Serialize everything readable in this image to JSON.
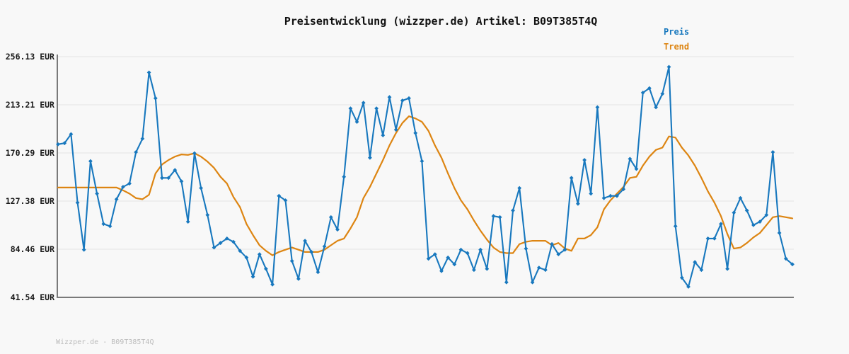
{
  "header": {
    "title": "Preisentwicklung (wizzper.de) Artikel: B09T385T4Q"
  },
  "legend": {
    "items": [
      {
        "label": "Preis",
        "color": "#1878be"
      },
      {
        "label": "Trend",
        "color": "#dd8512"
      }
    ]
  },
  "footer": {
    "text": "Wizzper.de - B09T385T4Q"
  },
  "colors": {
    "background": "#f8f8f8",
    "grid": "#e4e4e4",
    "spine": "#7a7a7a",
    "tick_label": "#1a1a1a",
    "title": "#111111",
    "footer": "#bcbcbc",
    "price": "#1878be",
    "trend": "#dd8512"
  },
  "chart_data": {
    "type": "line",
    "title": "Preisentwicklung (wizzper.de) Artikel: B09T385T4Q",
    "xlabel": "",
    "ylabel": "",
    "x_tick_labels": [],
    "grid": "horizontal",
    "legend_position": "top-right",
    "currency": "EUR",
    "ylim": [
      41.54,
      256.13
    ],
    "y_ticks": [
      {
        "value": 256.13,
        "label": "256.13 EUR"
      },
      {
        "value": 213.21,
        "label": "213.21 EUR"
      },
      {
        "value": 170.29,
        "label": "170.29 EUR"
      },
      {
        "value": 127.38,
        "label": "127.38 EUR"
      },
      {
        "value": 84.46,
        "label": "84.46 EUR"
      },
      {
        "value": 41.54,
        "label": "41.54 EUR"
      }
    ],
    "points": 114,
    "series": [
      {
        "name": "Preis",
        "color": "#1878be",
        "marker": "diamond",
        "values": [
          178,
          179,
          187,
          126,
          84,
          163,
          134,
          107,
          105,
          129,
          140,
          143,
          171,
          183,
          242,
          219,
          148,
          148,
          155,
          145,
          109,
          170,
          139,
          115,
          86,
          90,
          94,
          91,
          83,
          77,
          60,
          80,
          67,
          53,
          132,
          128,
          74,
          58,
          92,
          82,
          64,
          87,
          113,
          102,
          149,
          210,
          198,
          215,
          166,
          210,
          186,
          220,
          191,
          217,
          219,
          188,
          163,
          76,
          80,
          65,
          77,
          71,
          84,
          81,
          66,
          84,
          67,
          114,
          113,
          55,
          119,
          139,
          85,
          55,
          68,
          66,
          89,
          80,
          84,
          148,
          125,
          164,
          134,
          211,
          130,
          132,
          132,
          138,
          165,
          156,
          224,
          228,
          211,
          223,
          247,
          105,
          59,
          51,
          73,
          66,
          94,
          94,
          107,
          67,
          117,
          130,
          119,
          106,
          109,
          115,
          171,
          99,
          76,
          71
        ]
      },
      {
        "name": "Trend",
        "color": "#dd8512",
        "marker": "none",
        "values": [
          139.4,
          139.4,
          139.4,
          139.4,
          139.4,
          139.4,
          139.4,
          139.4,
          139.4,
          139.4,
          137,
          134,
          130,
          129,
          133,
          152,
          160,
          164,
          167,
          169,
          168.5,
          170,
          167,
          162.5,
          157,
          149,
          143,
          131,
          122,
          107,
          97,
          88,
          83,
          79,
          82,
          84,
          86,
          84,
          82,
          82,
          82,
          84,
          88,
          92,
          94,
          103,
          113,
          130,
          140,
          152,
          164,
          177,
          188,
          197,
          203,
          201,
          198,
          190,
          177,
          166,
          152,
          139,
          128,
          120,
          110,
          101,
          93,
          86,
          82,
          81,
          81,
          89,
          91,
          92,
          92,
          92,
          88,
          90,
          85,
          83,
          94,
          94,
          97,
          104,
          120,
          128,
          134,
          140,
          148,
          149,
          159,
          167,
          173,
          175,
          185,
          184,
          175,
          168,
          159,
          148,
          136,
          126,
          114,
          98,
          85,
          86,
          90,
          95,
          99,
          106,
          113,
          114,
          113,
          112
        ]
      }
    ]
  }
}
